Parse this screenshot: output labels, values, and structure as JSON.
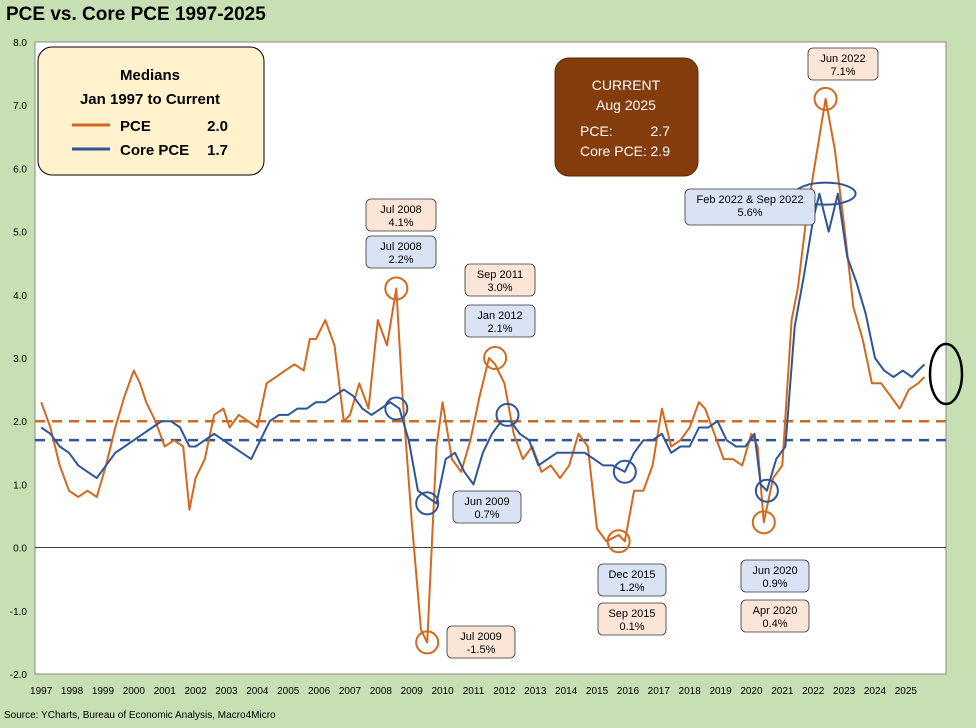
{
  "title": "PCE vs. Core PCE 1997-2025",
  "source": "Source: YCharts, Bureau of Economic Analysis, Macro4Micro",
  "colors": {
    "pce": "#d2691e",
    "core": "#2e5597",
    "bg": "#c6e0b4",
    "current_box": "#843c0c"
  },
  "chart_data": {
    "type": "line",
    "title": "PCE vs. Core PCE 1997-2025",
    "xlabel": "",
    "ylabel": "",
    "ylim": [
      -2.0,
      8.0
    ],
    "yticks": [
      "8.0",
      "7.0",
      "6.0",
      "5.0",
      "4.0",
      "3.0",
      "2.0",
      "1.0",
      "0.0",
      "-1.0",
      "-2.0"
    ],
    "xticks": [
      "1997",
      "1998",
      "1999",
      "2000",
      "2001",
      "2002",
      "2003",
      "2004",
      "2005",
      "2006",
      "2007",
      "2008",
      "2009",
      "2010",
      "2011",
      "2012",
      "2013",
      "2014",
      "2015",
      "2016",
      "2017",
      "2018",
      "2019",
      "2020",
      "2021",
      "2022",
      "2023",
      "2024",
      "2025"
    ],
    "series": [
      {
        "name": "PCE",
        "x": [
          1997.0,
          1997.3,
          1997.6,
          1997.9,
          1998.2,
          1998.5,
          1998.8,
          1999.1,
          1999.4,
          1999.7,
          2000.0,
          2000.2,
          2000.4,
          2000.7,
          2001.0,
          2001.3,
          2001.6,
          2001.8,
          2002.0,
          2002.3,
          2002.6,
          2002.9,
          2003.1,
          2003.4,
          2003.7,
          2004.0,
          2004.3,
          2004.6,
          2004.9,
          2005.2,
          2005.5,
          2005.7,
          2005.9,
          2006.2,
          2006.5,
          2006.8,
          2007.0,
          2007.3,
          2007.6,
          2007.9,
          2008.2,
          2008.5,
          2008.7,
          2009.0,
          2009.3,
          2009.5,
          2009.8,
          2010.0,
          2010.3,
          2010.6,
          2010.9,
          2011.2,
          2011.5,
          2011.7,
          2012.0,
          2012.3,
          2012.6,
          2012.9,
          2013.2,
          2013.5,
          2013.8,
          2014.1,
          2014.4,
          2014.7,
          2015.0,
          2015.3,
          2015.7,
          2015.9,
          2016.2,
          2016.5,
          2016.8,
          2017.1,
          2017.4,
          2017.7,
          2018.0,
          2018.3,
          2018.5,
          2018.8,
          2019.1,
          2019.4,
          2019.7,
          2020.0,
          2020.2,
          2020.4,
          2020.7,
          2021.0,
          2021.3,
          2021.5,
          2021.8,
          2022.1,
          2022.4,
          2022.7,
          2023.0,
          2023.3,
          2023.6,
          2023.9,
          2024.2,
          2024.5,
          2024.8,
          2025.1,
          2025.4,
          2025.6
        ],
        "values": [
          2.3,
          1.9,
          1.3,
          0.9,
          0.8,
          0.9,
          0.8,
          1.3,
          1.9,
          2.4,
          2.8,
          2.6,
          2.3,
          2.0,
          1.6,
          1.7,
          1.6,
          0.6,
          1.1,
          1.4,
          2.1,
          2.2,
          1.9,
          2.1,
          2.0,
          1.9,
          2.6,
          2.7,
          2.8,
          2.9,
          2.8,
          3.3,
          3.3,
          3.6,
          3.2,
          2.0,
          2.1,
          2.6,
          2.2,
          3.6,
          3.2,
          4.1,
          2.4,
          0.4,
          -1.3,
          -1.5,
          1.6,
          2.3,
          1.4,
          1.2,
          1.7,
          2.4,
          3.0,
          2.9,
          2.6,
          1.8,
          1.4,
          1.6,
          1.2,
          1.3,
          1.1,
          1.3,
          1.8,
          1.6,
          0.3,
          0.1,
          0.2,
          0.1,
          0.9,
          0.9,
          1.3,
          2.2,
          1.6,
          1.7,
          1.9,
          2.3,
          2.2,
          1.8,
          1.4,
          1.4,
          1.3,
          1.8,
          1.6,
          0.4,
          1.1,
          1.3,
          3.6,
          4.1,
          5.3,
          6.2,
          7.1,
          6.3,
          5.1,
          3.8,
          3.3,
          2.6,
          2.6,
          2.4,
          2.2,
          2.5,
          2.6,
          2.7
        ]
      },
      {
        "name": "Core PCE",
        "x": [
          1997.0,
          1997.3,
          1997.6,
          1997.9,
          1998.2,
          1998.5,
          1998.8,
          1999.1,
          1999.4,
          1999.7,
          2000.0,
          2000.3,
          2000.6,
          2000.9,
          2001.2,
          2001.5,
          2001.8,
          2002.0,
          2002.3,
          2002.6,
          2002.9,
          2003.2,
          2003.5,
          2003.8,
          2004.1,
          2004.4,
          2004.7,
          2005.0,
          2005.3,
          2005.6,
          2005.9,
          2006.2,
          2006.5,
          2006.8,
          2007.1,
          2007.4,
          2007.7,
          2008.0,
          2008.3,
          2008.6,
          2008.9,
          2009.2,
          2009.5,
          2009.8,
          2010.1,
          2010.4,
          2010.7,
          2011.0,
          2011.3,
          2011.6,
          2011.9,
          2012.2,
          2012.5,
          2012.8,
          2013.1,
          2013.4,
          2013.7,
          2014.0,
          2014.3,
          2014.6,
          2014.9,
          2015.2,
          2015.5,
          2015.9,
          2016.2,
          2016.5,
          2016.8,
          2017.1,
          2017.4,
          2017.7,
          2018.0,
          2018.3,
          2018.6,
          2018.9,
          2019.2,
          2019.5,
          2019.8,
          2020.1,
          2020.3,
          2020.5,
          2020.8,
          2021.1,
          2021.4,
          2021.7,
          2022.0,
          2022.2,
          2022.5,
          2022.8,
          2023.1,
          2023.4,
          2023.7,
          2024.0,
          2024.3,
          2024.6,
          2024.9,
          2025.2,
          2025.4,
          2025.6
        ],
        "values": [
          1.9,
          1.8,
          1.6,
          1.5,
          1.3,
          1.2,
          1.1,
          1.3,
          1.5,
          1.6,
          1.7,
          1.8,
          1.9,
          2.0,
          2.0,
          1.9,
          1.6,
          1.6,
          1.7,
          1.8,
          1.7,
          1.6,
          1.5,
          1.4,
          1.7,
          2.0,
          2.1,
          2.1,
          2.2,
          2.2,
          2.3,
          2.3,
          2.4,
          2.5,
          2.4,
          2.2,
          2.1,
          2.2,
          2.3,
          2.2,
          1.7,
          0.9,
          0.8,
          0.7,
          1.4,
          1.5,
          1.2,
          1.0,
          1.5,
          1.8,
          2.0,
          2.0,
          1.8,
          1.7,
          1.3,
          1.4,
          1.5,
          1.5,
          1.5,
          1.5,
          1.4,
          1.3,
          1.3,
          1.2,
          1.5,
          1.7,
          1.7,
          1.8,
          1.5,
          1.6,
          1.6,
          1.9,
          1.9,
          2.0,
          1.7,
          1.6,
          1.6,
          1.8,
          1.0,
          0.9,
          1.4,
          1.6,
          3.5,
          4.3,
          5.2,
          5.6,
          5.0,
          5.6,
          4.6,
          4.2,
          3.7,
          3.0,
          2.8,
          2.7,
          2.8,
          2.7,
          2.8,
          2.9
        ]
      }
    ],
    "medians": {
      "heading": "Medians",
      "subheading": "Jan 1997 to Current",
      "pce_label": "PCE",
      "pce_value": "2.0",
      "core_label": "Core PCE",
      "core_value": "1.7",
      "pce": 2.0,
      "core": 1.7
    },
    "current": {
      "heading": "CURRENT",
      "date": "Aug 2025",
      "pce_label": "PCE:",
      "pce_value": "2.7",
      "core_label": "Core PCE:",
      "core_value": "2.9"
    },
    "annotations": [
      {
        "id": "jul2008-pce",
        "line1": "Jul 2008",
        "line2": "4.1%",
        "series": "pce",
        "at_x": 2008.5,
        "at_y": 4.1
      },
      {
        "id": "jul2008-core",
        "line1": "Jul 2008",
        "line2": "2.2%",
        "series": "core",
        "at_x": 2008.5,
        "at_y": 2.2
      },
      {
        "id": "sep2011-pce",
        "line1": "Sep 2011",
        "line2": "3.0%",
        "series": "pce",
        "at_x": 2011.7,
        "at_y": 3.0
      },
      {
        "id": "jan2012-core",
        "line1": "Jan 2012",
        "line2": "2.1%",
        "series": "core",
        "at_x": 2012.1,
        "at_y": 2.1
      },
      {
        "id": "jun2009-core",
        "line1": "Jun 2009",
        "line2": "0.7%",
        "series": "core",
        "at_x": 2009.5,
        "at_y": 0.7
      },
      {
        "id": "jul2009-pce",
        "line1": "Jul 2009",
        "line2": "-1.5%",
        "series": "pce",
        "at_x": 2009.5,
        "at_y": -1.5
      },
      {
        "id": "dec2015-core",
        "line1": "Dec 2015",
        "line2": "1.2%",
        "series": "core",
        "at_x": 2015.9,
        "at_y": 1.2
      },
      {
        "id": "sep2015-pce",
        "line1": "Sep 2015",
        "line2": "0.1%",
        "series": "pce",
        "at_x": 2015.7,
        "at_y": 0.1
      },
      {
        "id": "jun2020-core",
        "line1": "Jun 2020",
        "line2": "0.9%",
        "series": "core",
        "at_x": 2020.5,
        "at_y": 0.9
      },
      {
        "id": "apr2020-pce",
        "line1": "Apr 2020",
        "line2": "0.4%",
        "series": "pce",
        "at_x": 2020.4,
        "at_y": 0.4
      },
      {
        "id": "jun2022-pce",
        "line1": "Jun 2022",
        "line2": "7.1%",
        "series": "pce",
        "at_x": 2022.4,
        "at_y": 7.1
      },
      {
        "id": "febsep2022-core",
        "line1": "Feb 2022 & Sep 2022",
        "line2": "5.6%",
        "series": "core",
        "at_x": 2022.4,
        "at_y": 5.6
      }
    ]
  }
}
